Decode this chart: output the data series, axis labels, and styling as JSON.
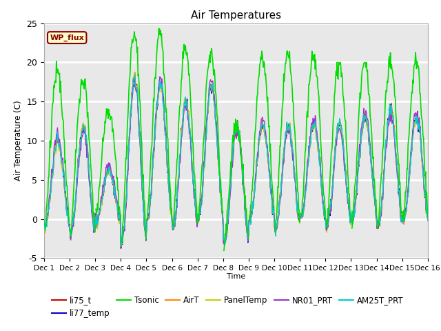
{
  "title": "Air Temperatures",
  "xlabel": "Time",
  "ylabel": "Air Temperature (C)",
  "ylim": [
    -5,
    25
  ],
  "xtick_labels": [
    "Dec 1",
    "Dec 2",
    "Dec 3",
    "Dec 4",
    "Dec 5",
    "Dec 6",
    "Dec 7",
    "Dec 8",
    "Dec 9",
    "Dec 10",
    "Dec 11",
    "Dec 12",
    "Dec 13",
    "Dec 14",
    "Dec 15",
    "Dec 16"
  ],
  "ytick_vals": [
    -5,
    0,
    5,
    10,
    15,
    20,
    25
  ],
  "series": {
    "li75_t": {
      "color": "#cc0000",
      "lw": 1.0
    },
    "li77_temp": {
      "color": "#0000cc",
      "lw": 1.0
    },
    "Tsonic": {
      "color": "#00dd00",
      "lw": 1.2
    },
    "AirT": {
      "color": "#ff8800",
      "lw": 1.0
    },
    "PanelTemp": {
      "color": "#cccc00",
      "lw": 1.0
    },
    "NR01_PRT": {
      "color": "#9933cc",
      "lw": 1.0
    },
    "AM25T_PRT": {
      "color": "#00cccc",
      "lw": 1.0
    }
  },
  "annotation_text": "WP_flux",
  "annotation_facecolor": "#ffffcc",
  "annotation_edgecolor": "#8b0000",
  "fig_facecolor": "#ffffff",
  "ax_facecolor": "#e8e8e8",
  "grid_color": "#ffffff",
  "n_points": 720,
  "n_days": 15
}
